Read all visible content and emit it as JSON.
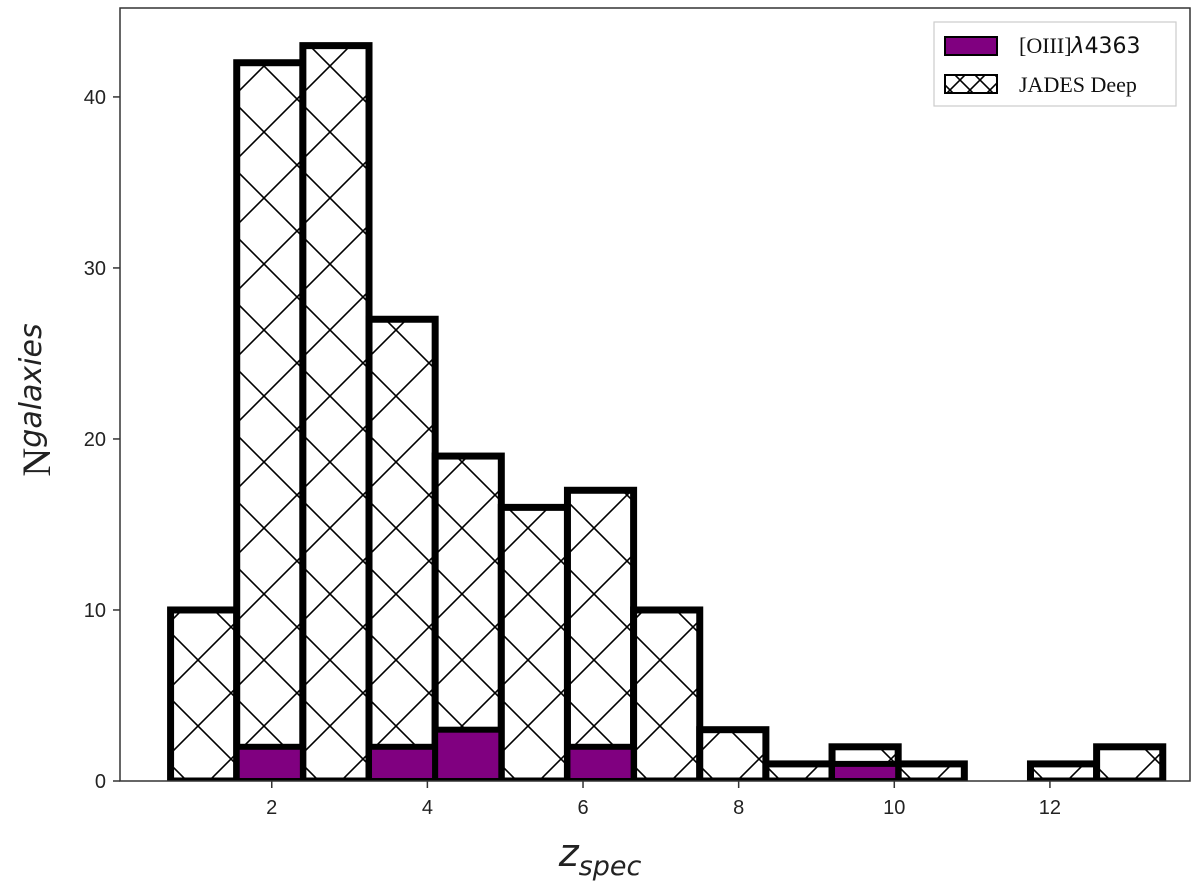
{
  "chart_data": {
    "type": "bar",
    "title": "",
    "xlabel": {
      "main": "z",
      "sub": "spec"
    },
    "ylabel": {
      "main": "N",
      "sub": "galaxies"
    },
    "xlim": [
      0.05,
      13.8
    ],
    "ylim": [
      0,
      45.2
    ],
    "xticks": [
      2,
      4,
      6,
      8,
      10,
      12
    ],
    "yticks": [
      0,
      10,
      20,
      30,
      40
    ],
    "bin_edges": [
      0.7,
      1.55,
      2.4,
      3.25,
      4.1,
      4.95,
      5.8,
      6.65,
      7.5,
      8.35,
      9.2,
      10.05,
      10.9,
      11.75,
      12.6,
      13.45
    ],
    "series": [
      {
        "name": "JADES Deep",
        "style": "hatched",
        "color": "#ffffff",
        "edgecolor": "#000000",
        "values": [
          10,
          42,
          43,
          27,
          19,
          16,
          17,
          10,
          3,
          1,
          2,
          1,
          0,
          1,
          2
        ]
      },
      {
        "name_parts": [
          "[OIII]",
          "λ",
          "4363"
        ],
        "style": "filled",
        "color": "#800080",
        "edgecolor": "#000000",
        "values": [
          0,
          2,
          0,
          2,
          3,
          0,
          2,
          0,
          0,
          0,
          1,
          0,
          0,
          0,
          0
        ]
      }
    ],
    "legend": {
      "placement": "top-right"
    },
    "grid": false
  }
}
